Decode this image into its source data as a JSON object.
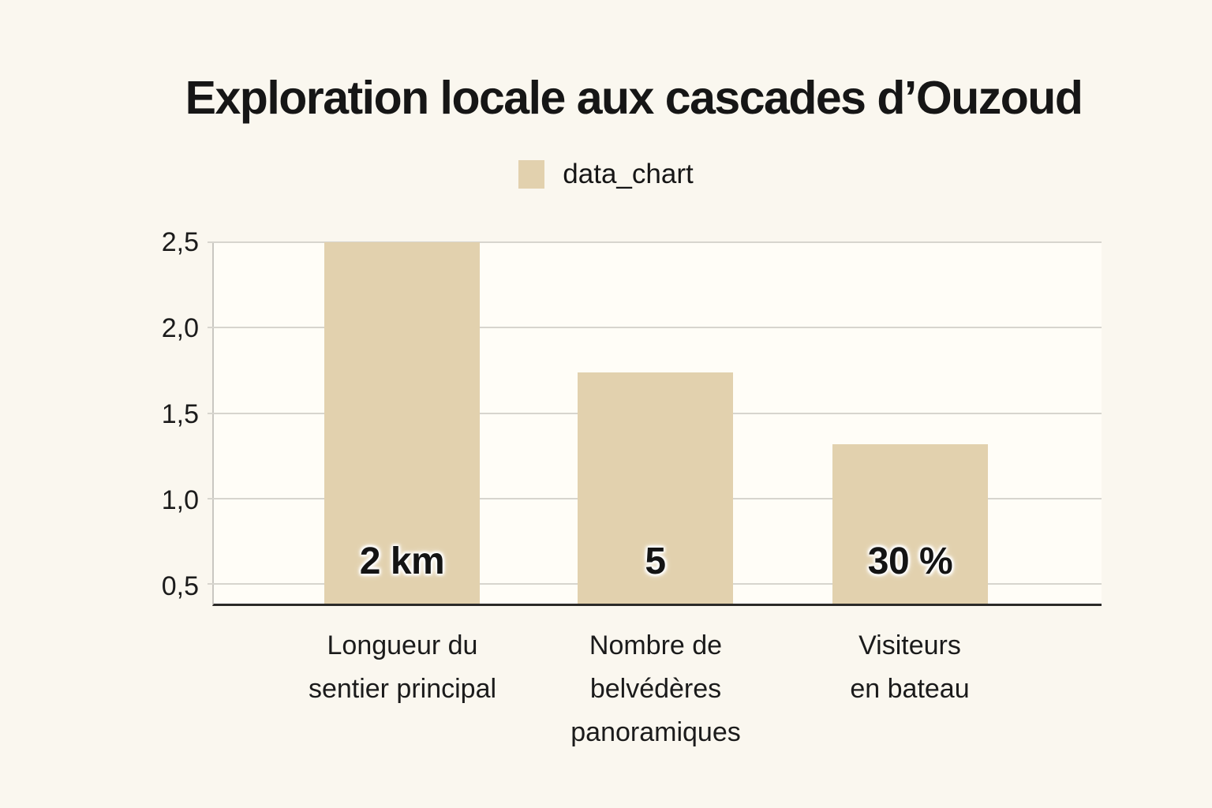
{
  "title": "Exploration locale aux cascades d’Ouzoud",
  "legend": {
    "label": "data_chart",
    "position": "top"
  },
  "chart_data": {
    "type": "bar",
    "title": "Exploration locale aux cascades d’Ouzoud",
    "legend": {
      "label": "data_chart",
      "position": "top"
    },
    "categories": [
      "Longueur du sentier principal",
      "Nombre de belvédères panoramiques",
      "Visiteurs en bateau"
    ],
    "category_lines": [
      [
        "Longueur du",
        "sentier principal"
      ],
      [
        "Nombre de",
        "belvédères",
        "panoramiques"
      ],
      [
        "Visiteurs",
        "en bateau"
      ]
    ],
    "bars": [
      {
        "category": "Longueur du sentier principal",
        "label": "2 km",
        "actual_value": 2,
        "actual_unit": "km",
        "plotted_height": 2.5
      },
      {
        "category": "Nombre de belvédères panoramiques",
        "label": "5",
        "actual_value": 5,
        "actual_unit": "",
        "plotted_height": 1.74
      },
      {
        "category": "Visiteurs en bateau",
        "label": "30 %",
        "actual_value": 30,
        "actual_unit": "%",
        "plotted_height": 1.32
      }
    ],
    "y_axis": {
      "tick_labels": [
        "2,5",
        "2,0",
        "1,5",
        "1,0",
        "0,5"
      ],
      "tick_values": [
        2.5,
        2.0,
        1.5,
        1.0,
        0.5
      ],
      "min": 0.385,
      "max": 2.5,
      "decimal_style": "comma"
    },
    "grid": true,
    "xlabel": "",
    "ylabel": "",
    "colors": {
      "bar": "#e2d1ae",
      "background": "#faf7ef",
      "plot_background": "#fffdf7",
      "gridline": "#d7d5ce",
      "axis_line": "#2b2a28",
      "text": "#1b1b1b"
    }
  }
}
